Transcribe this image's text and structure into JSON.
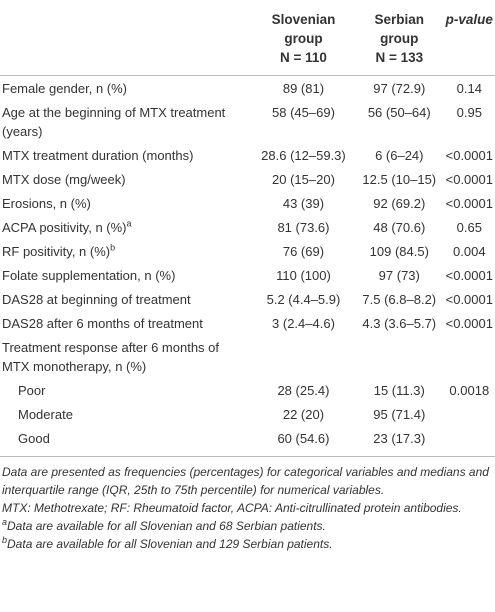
{
  "table": {
    "headers": [
      {
        "name": "Slovenian group",
        "n": "N = 110"
      },
      {
        "name": "Serbian group",
        "n": "N = 133"
      },
      {
        "name": "p-value"
      }
    ],
    "rows": [
      {
        "label": "Female gender, n (%)",
        "cells": [
          "89 (81)",
          "97 (72.9)",
          "0.14"
        ]
      },
      {
        "label": "Age at the beginning of MTX treatment (years)",
        "cells": [
          "58 (45–69)",
          "56 (50–64)",
          "0.95"
        ]
      },
      {
        "label": "MTX treatment duration (months)",
        "cells": [
          "28.6 (12–59.3)",
          "6 (6–24)",
          "<0.0001"
        ]
      },
      {
        "label": "MTX dose (mg/week)",
        "cells": [
          "20 (15–20)",
          "12.5 (10–15)",
          "<0.0001"
        ]
      },
      {
        "label": "Erosions, n (%)",
        "cells": [
          "43 (39)",
          "92 (69.2)",
          "<0.0001"
        ]
      },
      {
        "label": "ACPA positivity, n (%)",
        "note": "a",
        "cells": [
          "81 (73.6)",
          "48 (70.6)",
          "0.65"
        ]
      },
      {
        "label": "RF positivity, n (%)",
        "note": "b",
        "cells": [
          "76 (69)",
          "109 (84.5)",
          "0.004"
        ]
      },
      {
        "label": "Folate supplementation, n (%)",
        "cells": [
          "110 (100)",
          "97 (73)",
          "<0.0001"
        ]
      },
      {
        "label": "DAS28 at beginning of treatment",
        "cells": [
          "5.2 (4.4–5.9)",
          "7.5 (6.8–8.2)",
          "<0.0001"
        ]
      },
      {
        "label": "DAS28 after 6 months of treatment",
        "cells": [
          "3 (2.4–4.6)",
          "4.3 (3.6–5.7)",
          "<0.0001"
        ]
      },
      {
        "label": "Treatment response after 6 months of MTX monotherapy, n (%)",
        "cells": []
      },
      {
        "label": "Poor",
        "indent": true,
        "cells": [
          "28 (25.4)",
          "15 (11.3)",
          "0.0018"
        ]
      },
      {
        "label": "Moderate",
        "indent": true,
        "cells": [
          "22 (20)",
          "95 (71.4)"
        ]
      },
      {
        "label": "Good",
        "indent": true,
        "cells": [
          "60 (54.6)",
          "23 (17.3)"
        ]
      }
    ]
  },
  "footnotes": [
    {
      "text": "Data are presented as frequencies (percentages) for categorical variables and medians and interquartile range (IQR, 25th to 75th percentile) for numerical variables."
    },
    {
      "text": "MTX: Methotrexate; RF: Rheumatoid factor, ACPA: Anti-citrullinated protein antibodies."
    },
    {
      "mark": "a",
      "text": "Data are available for all Slovenian and 68 Serbian patients."
    },
    {
      "mark": "b",
      "text": "Data are available for all Slovenian and 129 Serbian patients."
    }
  ]
}
